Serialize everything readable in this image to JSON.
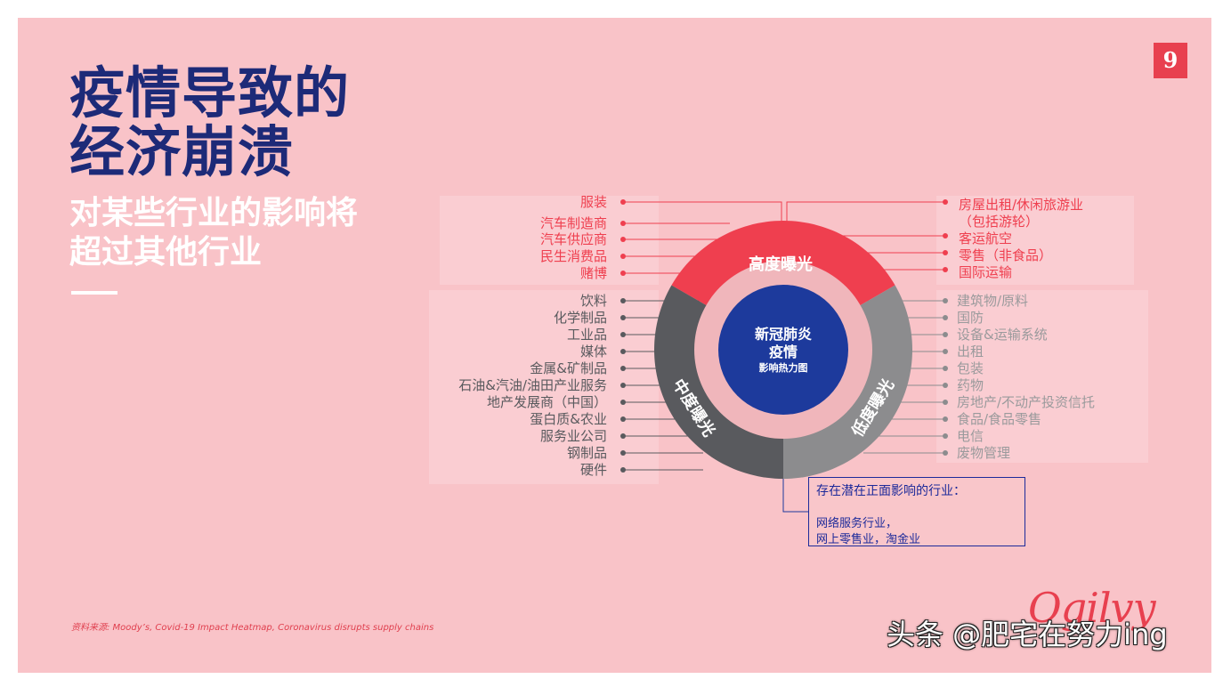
{
  "slide": {
    "title_line1": "疫情导致的",
    "title_line2": "经济崩溃",
    "subtitle_line1": "对某些行业的影响将",
    "subtitle_line2": "超过其他行业",
    "page_number": "9",
    "source": "资料来源: Moody’s, Covid-19 Impact Heatmap, Coronavirus disrupts supply chains",
    "logo": "Ogilvy",
    "watermark": "头条 @肥宅在努力ing"
  },
  "diagram": {
    "center_line1": "新冠肺炎",
    "center_line2": "疫情",
    "center_line3": "影响热力图",
    "high": {
      "label": "高度曝光",
      "color": "#ef3f4f",
      "left_items": [
        "服装",
        "汽车制造商",
        "汽车供应商",
        "民生消费品",
        "赌博"
      ],
      "right_items": [
        "房屋出租/休闲旅游业",
        "（包括游轮）",
        "客运航空",
        "零售（非食品）",
        "国际运输"
      ]
    },
    "medium": {
      "label": "中度曝光",
      "color": "#595a5e",
      "items": [
        "饮料",
        "化学制品",
        "工业品",
        "媒体",
        "金属&矿制品",
        "石油&汽油/油田产业服务",
        "地产发展商（中国）",
        "蛋白质&农业",
        "服务业公司",
        "钢制品",
        "硬件"
      ]
    },
    "low": {
      "label": "低度曝光",
      "color": "#8c8c8e",
      "items": [
        "建筑物/原料",
        "国防",
        "设备&运输系统",
        "出租",
        "包装",
        "药物",
        "房地产/不动产投资信托",
        "食品/食品零售",
        "电信",
        "废物管理"
      ]
    },
    "positive": {
      "title": "存在潜在正面影响的行业：",
      "line1": "网络服务行业，",
      "line2": "网上零售业，淘金业"
    },
    "colors": {
      "navy": "#1d2a78",
      "blue": "#1d3a9c",
      "inner_ring": "#f0b6bb"
    }
  }
}
